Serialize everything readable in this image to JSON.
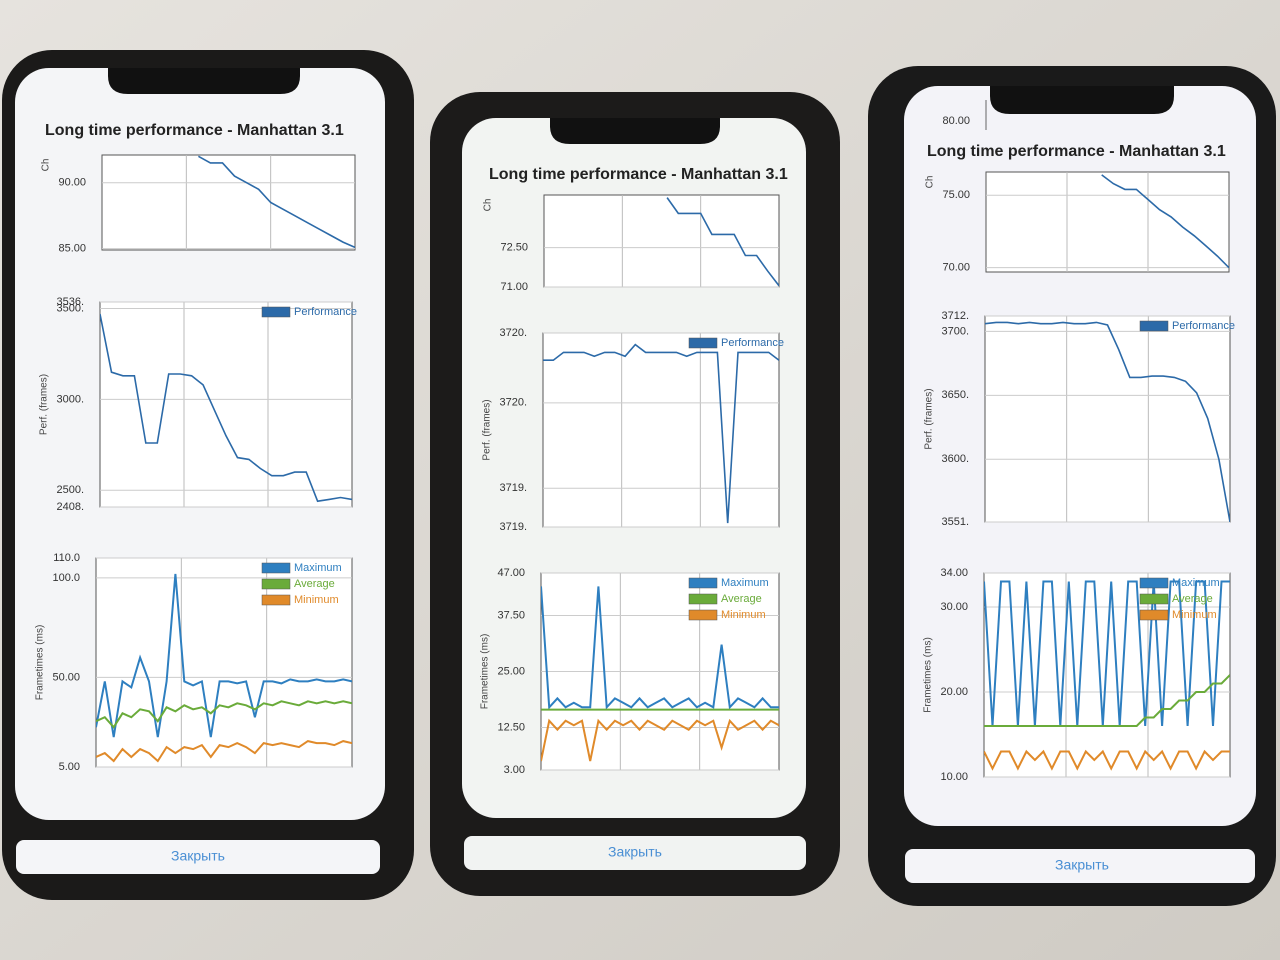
{
  "phones": [
    {
      "title": "Long time performance - Manhattan 3.1",
      "charts": [
        {
          "y_label": "Ch",
          "ylim": [
            84.9,
            92.1
          ],
          "yticks": [
            {
              "value": 90,
              "label": "90.00"
            },
            {
              "value": 85,
              "label": "85.00"
            }
          ],
          "series": [
            {
              "color": "#2c6aa8",
              "values": [
                null,
                null,
                null,
                null,
                null,
                null,
                null,
                null,
                92,
                91.5,
                91.5,
                90.5,
                90,
                89.5,
                88.5,
                88,
                87.5,
                87,
                86.5,
                86,
                85.5,
                85.1
              ]
            }
          ]
        },
        {
          "y_label": "Perf. (frames)",
          "ylim": [
            2408,
            3536
          ],
          "yticks": [
            {
              "value": 3536,
              "label": "3536."
            },
            {
              "value": 3500,
              "label": "3500."
            },
            {
              "value": 3000,
              "label": "3000."
            },
            {
              "value": 2500,
              "label": "2500."
            },
            {
              "value": 2408,
              "label": "2408."
            }
          ],
          "series": [
            {
              "name": "Performance",
              "color": "#2c6aa8",
              "values": [
                3470,
                3150,
                3130,
                3130,
                2760,
                2760,
                3140,
                3140,
                3130,
                3080,
                2940,
                2800,
                2680,
                2670,
                2620,
                2580,
                2580,
                2600,
                2600,
                2440,
                2450,
                2460,
                2450
              ]
            }
          ]
        },
        {
          "y_label": "Frametimes (ms)",
          "ylim": [
            5,
            110
          ],
          "yticks": [
            {
              "value": 110,
              "label": "110.0"
            },
            {
              "value": 100,
              "label": "100.0"
            },
            {
              "value": 50,
              "label": "50.00"
            },
            {
              "value": 5,
              "label": "5.00"
            }
          ],
          "series": [
            {
              "name": "Maximum",
              "color": "#2e7fc0",
              "values": [
                25,
                48,
                20,
                48,
                45,
                60,
                48,
                20,
                48,
                102,
                48,
                46,
                48,
                20,
                48,
                48,
                47,
                48,
                30,
                48,
                48,
                47,
                49,
                48,
                48,
                49,
                48,
                48,
                49,
                48
              ]
            },
            {
              "name": "Average",
              "color": "#6aab3a",
              "values": [
                28,
                30,
                25,
                32,
                30,
                34,
                33,
                28,
                35,
                33,
                36,
                34,
                35,
                32,
                36,
                35,
                37,
                36,
                34,
                37,
                36,
                38,
                37,
                36,
                38,
                37,
                38,
                37,
                38,
                37
              ]
            },
            {
              "name": "Minimum",
              "color": "#e08a2a",
              "values": [
                10,
                12,
                8,
                14,
                10,
                14,
                12,
                8,
                15,
                12,
                15,
                14,
                16,
                10,
                16,
                15,
                17,
                15,
                12,
                17,
                16,
                17,
                16,
                15,
                18,
                17,
                17,
                16,
                18,
                17
              ]
            }
          ]
        }
      ],
      "close_button": "Закрыть"
    },
    {
      "title": "Long time performance - Manhattan 3.1",
      "charts": [
        {
          "y_label": "Ch",
          "ylim": [
            71,
            74.5
          ],
          "yticks": [
            {
              "value": 72.5,
              "label": "72.50"
            },
            {
              "value": 71,
              "label": "71.00"
            }
          ],
          "series": [
            {
              "color": "#2c6aa8",
              "values": [
                null,
                null,
                null,
                null,
                null,
                null,
                null,
                null,
                null,
                null,
                null,
                74.4,
                73.8,
                73.8,
                73.8,
                73.0,
                73.0,
                73.0,
                72.2,
                72.2,
                71.6,
                71.05
              ]
            }
          ]
        },
        {
          "y_label": "Perf. (frames)",
          "ylim": [
            3719.0,
            3720.0
          ],
          "yticks": [
            {
              "value": 3720.0,
              "label": "3720."
            },
            {
              "value": 3719.64,
              "label": "3720."
            },
            {
              "value": 3719.2,
              "label": "3719."
            },
            {
              "value": 3719.0,
              "label": "3719."
            }
          ],
          "series": [
            {
              "name": "Performance",
              "color": "#2c6aa8",
              "values": [
                3719.86,
                3719.86,
                3719.9,
                3719.9,
                3719.9,
                3719.88,
                3719.9,
                3719.9,
                3719.88,
                3719.94,
                3719.9,
                3719.9,
                3719.9,
                3719.9,
                3719.88,
                3719.9,
                3719.9,
                3719.9,
                3719.02,
                3719.9,
                3719.9,
                3719.9,
                3719.9,
                3719.86
              ]
            }
          ]
        },
        {
          "y_label": "Frametimes (ms)",
          "ylim": [
            3,
            47
          ],
          "yticks": [
            {
              "value": 47,
              "label": "47.00"
            },
            {
              "value": 37.5,
              "label": "37.50"
            },
            {
              "value": 25,
              "label": "25.00"
            },
            {
              "value": 12.5,
              "label": "12.50"
            },
            {
              "value": 3,
              "label": "3.00"
            }
          ],
          "series": [
            {
              "name": "Maximum",
              "color": "#2e7fc0",
              "values": [
                44,
                17,
                19,
                17,
                18,
                17,
                17,
                44,
                17,
                19,
                18,
                17,
                19,
                17,
                18,
                19,
                17,
                18,
                19,
                17,
                18,
                17,
                31,
                17,
                19,
                18,
                17,
                19,
                17,
                17
              ]
            },
            {
              "name": "Average",
              "color": "#6aab3a",
              "values": [
                16.5,
                16.5,
                16.5,
                16.5,
                16.5,
                16.5,
                16.5,
                16.5,
                16.5,
                16.5,
                16.5,
                16.5,
                16.5,
                16.5,
                16.5,
                16.5,
                16.5,
                16.5,
                16.5,
                16.5,
                16.5,
                16.5,
                16.5,
                16.5,
                16.5,
                16.5,
                16.5,
                16.5,
                16.5,
                16.5
              ]
            },
            {
              "name": "Minimum",
              "color": "#e08a2a",
              "values": [
                5,
                14,
                12,
                14,
                13,
                14,
                5,
                14,
                12,
                14,
                13,
                14,
                12,
                14,
                13,
                12,
                14,
                13,
                12,
                14,
                13,
                14,
                8,
                14,
                12,
                13,
                14,
                12,
                14,
                13
              ]
            }
          ]
        }
      ],
      "close_button": "Закрыть"
    },
    {
      "title": "Long time performance - Manhattan 3.1",
      "scroll_top_label": "80.00",
      "charts": [
        {
          "y_label": "Ch",
          "ylim": [
            69.7,
            76.6
          ],
          "yticks": [
            {
              "value": 75,
              "label": "75.00"
            },
            {
              "value": 70,
              "label": "70.00"
            }
          ],
          "series": [
            {
              "color": "#2c6aa8",
              "values": [
                null,
                null,
                null,
                null,
                null,
                null,
                null,
                null,
                null,
                null,
                76.4,
                75.8,
                75.4,
                75.4,
                74.7,
                74.0,
                73.5,
                72.8,
                72.2,
                71.5,
                70.8,
                70.0
              ]
            }
          ]
        },
        {
          "y_label": "Perf. (frames)",
          "ylim": [
            3551,
            3712
          ],
          "yticks": [
            {
              "value": 3712,
              "label": "3712."
            },
            {
              "value": 3700,
              "label": "3700."
            },
            {
              "value": 3650,
              "label": "3650."
            },
            {
              "value": 3600,
              "label": "3600."
            },
            {
              "value": 3551,
              "label": "3551."
            }
          ],
          "series": [
            {
              "name": "Performance",
              "color": "#2c6aa8",
              "values": [
                3706,
                3707,
                3707,
                3706,
                3707,
                3706,
                3706,
                3707,
                3706,
                3706,
                3707,
                3705,
                3686,
                3664,
                3664,
                3665,
                3665,
                3664,
                3661,
                3652,
                3632,
                3600,
                3551
              ]
            }
          ]
        },
        {
          "y_label": "Frametimes (ms)",
          "ylim": [
            10,
            34
          ],
          "yticks": [
            {
              "value": 34,
              "label": "34.00"
            },
            {
              "value": 30,
              "label": "30.00"
            },
            {
              "value": 20,
              "label": "20.00"
            },
            {
              "value": 10,
              "label": "10.00"
            }
          ],
          "series": [
            {
              "name": "Maximum",
              "color": "#2e7fc0",
              "values": [
                33,
                16,
                33,
                33,
                16,
                33,
                16,
                33,
                33,
                16,
                33,
                16,
                33,
                33,
                16,
                33,
                16,
                33,
                33,
                16,
                33,
                16,
                33,
                33,
                16,
                33,
                33,
                16,
                33,
                33
              ]
            },
            {
              "name": "Average",
              "color": "#6aab3a",
              "values": [
                16,
                16,
                16,
                16,
                16,
                16,
                16,
                16,
                16,
                16,
                16,
                16,
                16,
                16,
                16,
                16,
                16,
                16,
                16,
                17,
                17,
                18,
                18,
                19,
                19,
                20,
                20,
                21,
                21,
                22
              ]
            },
            {
              "name": "Minimum",
              "color": "#e08a2a",
              "values": [
                13,
                11,
                13,
                13,
                11,
                13,
                12,
                13,
                11,
                13,
                13,
                11,
                13,
                12,
                13,
                11,
                13,
                13,
                11,
                13,
                12,
                13,
                11,
                13,
                13,
                11,
                13,
                12,
                13,
                13
              ]
            }
          ]
        }
      ],
      "close_button": "Закрыть"
    }
  ]
}
